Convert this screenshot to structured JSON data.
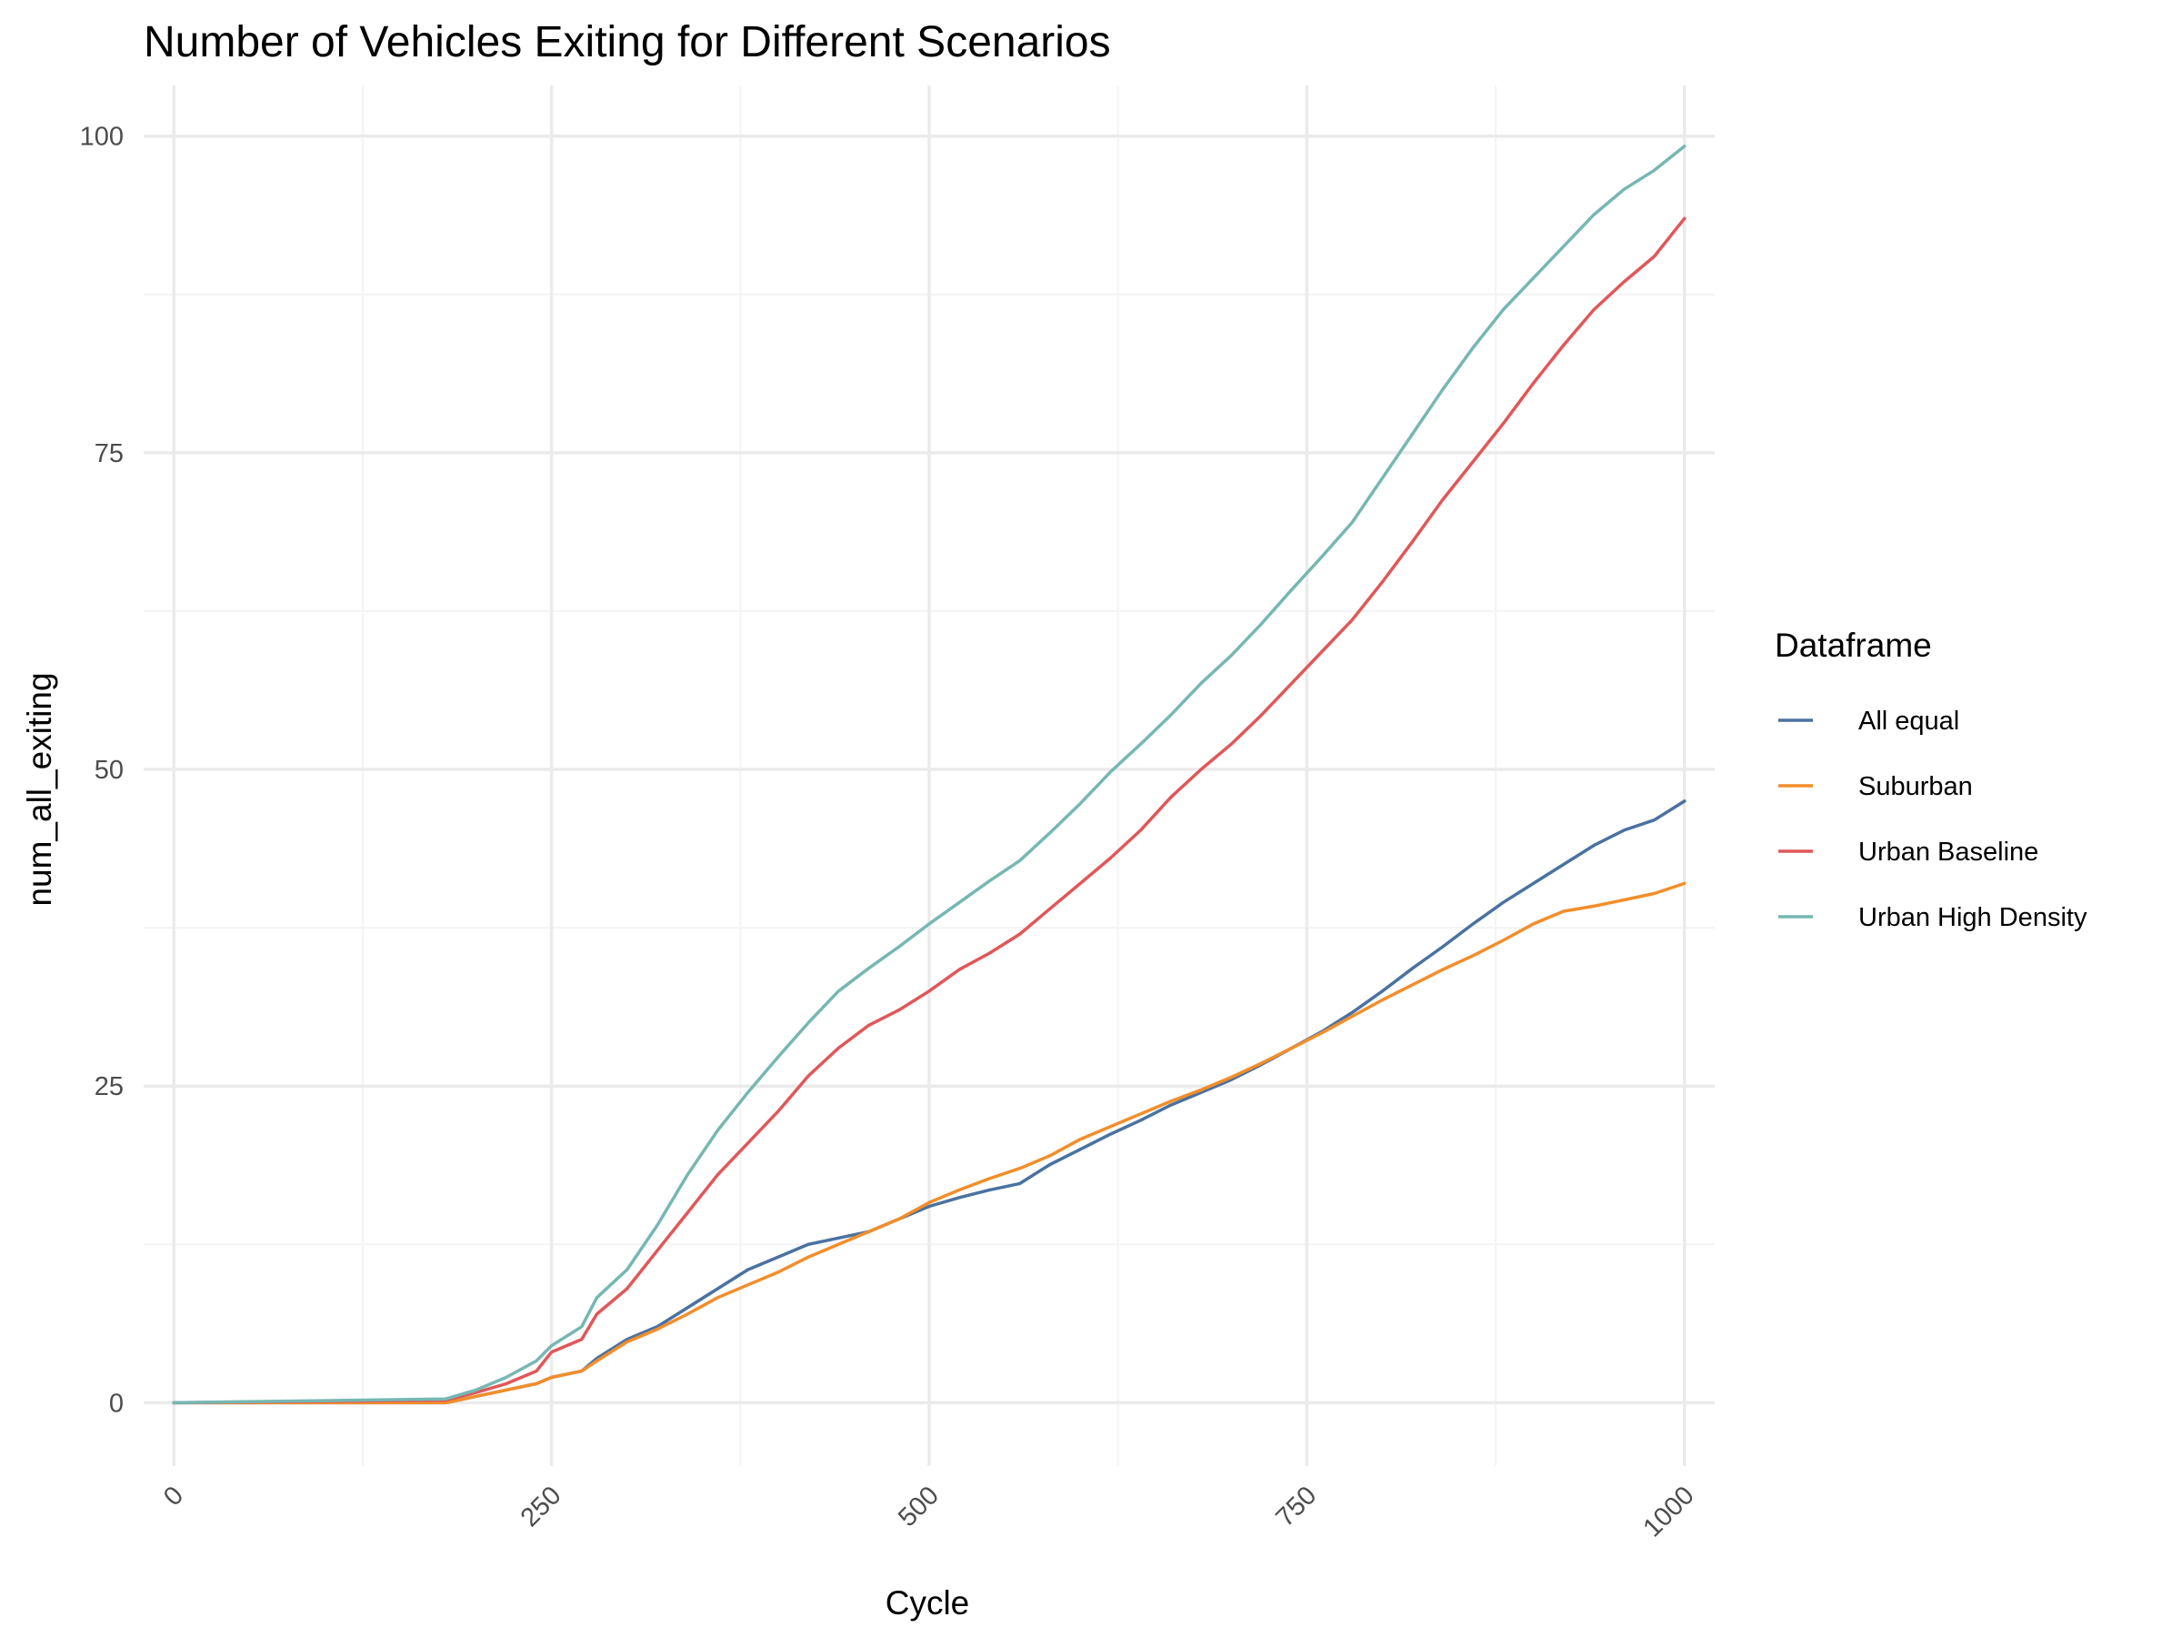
{
  "colors": {
    "background": "#ffffff",
    "grid_major": "#ebebeb",
    "grid_minor": "#f4f4f4",
    "tick_text": "#4d4d4d"
  },
  "chart_data": {
    "type": "line",
    "title": "Number of Vehicles Exiting for Different Scenarios",
    "xlabel": "Cycle",
    "ylabel": "num_all_exiting",
    "xlim": [
      -20,
      1020
    ],
    "ylim": [
      -5,
      104
    ],
    "x_ticks": [
      0,
      250,
      500,
      750,
      1000
    ],
    "x_tick_labels": [
      "0",
      "250",
      "500",
      "750",
      "1000"
    ],
    "x_tick_rotation": 45,
    "y_ticks": [
      0,
      25,
      50,
      75,
      100
    ],
    "y_tick_labels": [
      "0",
      "25",
      "50",
      "75",
      "100"
    ],
    "grid": true,
    "legend": {
      "title": "Dataframe",
      "position": "right"
    },
    "series": [
      {
        "name": "All equal",
        "color": "#4a72a0",
        "x": [
          0,
          180,
          200,
          220,
          240,
          250,
          270,
          280,
          300,
          320,
          340,
          360,
          380,
          400,
          420,
          440,
          460,
          480,
          500,
          520,
          540,
          560,
          580,
          600,
          620,
          640,
          660,
          680,
          700,
          720,
          740,
          760,
          780,
          800,
          820,
          840,
          860,
          880,
          900,
          920,
          940,
          960,
          980,
          1000
        ],
        "y": [
          0,
          0,
          0.5,
          1,
          1.5,
          2,
          2.5,
          3.5,
          5,
          6,
          7.5,
          9,
          10.5,
          11.5,
          12.5,
          13,
          13.5,
          14.5,
          15.5,
          16.2,
          16.8,
          17.3,
          18.8,
          20,
          21.2,
          22.3,
          23.5,
          24.5,
          25.5,
          26.7,
          28,
          29.3,
          30.8,
          32.5,
          34.3,
          36,
          37.8,
          39.5,
          41,
          42.5,
          44,
          45.2,
          46,
          47.5
        ]
      },
      {
        "name": "Suburban",
        "color": "#f28e2b",
        "x": [
          0,
          180,
          200,
          220,
          240,
          250,
          270,
          280,
          300,
          320,
          340,
          360,
          380,
          400,
          420,
          440,
          460,
          480,
          500,
          520,
          540,
          560,
          580,
          600,
          620,
          640,
          660,
          680,
          700,
          720,
          740,
          760,
          780,
          800,
          820,
          840,
          860,
          880,
          900,
          920,
          940,
          960,
          980,
          1000
        ],
        "y": [
          0,
          0,
          0.5,
          1,
          1.5,
          2,
          2.5,
          3.3,
          4.8,
          5.8,
          7,
          8.3,
          9.3,
          10.3,
          11.5,
          12.5,
          13.5,
          14.5,
          15.8,
          16.8,
          17.7,
          18.5,
          19.5,
          20.8,
          21.8,
          22.8,
          23.8,
          24.7,
          25.7,
          26.8,
          28,
          29.2,
          30.5,
          31.8,
          33,
          34.2,
          35.3,
          36.5,
          37.8,
          38.8,
          39.2,
          39.7,
          40.2,
          41
        ]
      },
      {
        "name": "Urban Baseline",
        "color": "#e15759",
        "x": [
          0,
          180,
          200,
          220,
          240,
          250,
          270,
          280,
          300,
          320,
          340,
          360,
          380,
          400,
          420,
          440,
          460,
          480,
          500,
          520,
          540,
          560,
          580,
          600,
          620,
          640,
          660,
          680,
          700,
          720,
          740,
          760,
          780,
          800,
          820,
          840,
          860,
          880,
          900,
          920,
          940,
          960,
          980,
          1000
        ],
        "y": [
          0,
          0.2,
          0.8,
          1.5,
          2.5,
          4,
          5,
          7,
          9,
          12,
          15,
          18,
          20.5,
          23,
          25.8,
          28,
          29.8,
          31,
          32.5,
          34.2,
          35.5,
          37,
          39,
          41,
          43,
          45.2,
          47.8,
          50,
          52,
          54.3,
          56.8,
          59.3,
          61.8,
          64.8,
          68,
          71.3,
          74.3,
          77.3,
          80.5,
          83.5,
          86.3,
          88.5,
          90.5,
          93.5
        ]
      },
      {
        "name": "Urban High Density",
        "color": "#76b7b2",
        "x": [
          0,
          180,
          200,
          220,
          240,
          250,
          270,
          280,
          300,
          320,
          340,
          360,
          380,
          400,
          420,
          440,
          460,
          480,
          500,
          520,
          540,
          560,
          580,
          600,
          620,
          640,
          660,
          680,
          700,
          720,
          740,
          760,
          780,
          800,
          820,
          840,
          860,
          880,
          900,
          920,
          940,
          960,
          980,
          1000
        ],
        "y": [
          0,
          0.3,
          1,
          2,
          3.3,
          4.5,
          6,
          8.3,
          10.5,
          14,
          18,
          21.5,
          24.5,
          27.3,
          30,
          32.5,
          34.3,
          36,
          37.8,
          39.5,
          41.2,
          42.8,
          45,
          47.3,
          49.8,
          52,
          54.3,
          56.8,
          59,
          61.5,
          64.2,
          66.8,
          69.5,
          73,
          76.5,
          80,
          83.3,
          86.3,
          88.8,
          91.3,
          93.8,
          95.8,
          97.3,
          99.2
        ]
      }
    ]
  }
}
